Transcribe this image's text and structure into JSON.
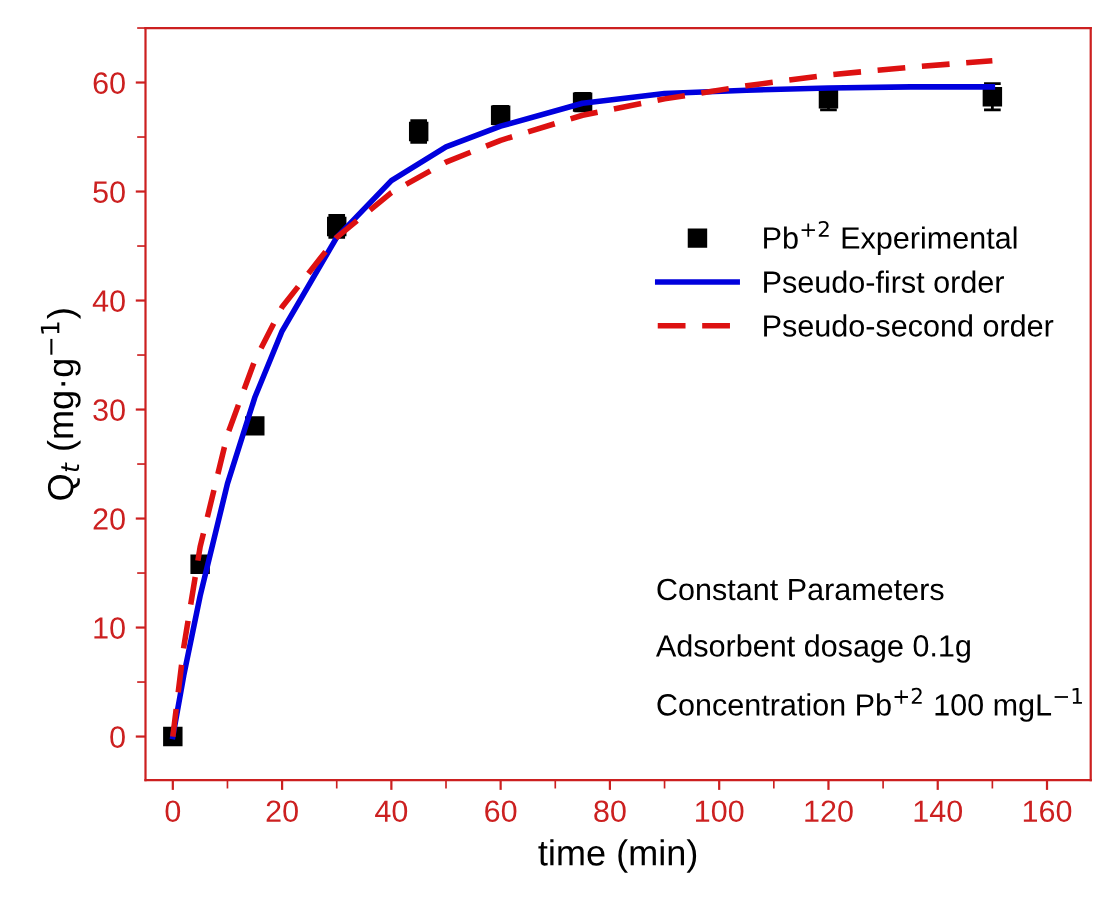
{
  "chart_data": {
    "type": "scatter",
    "xlabel": "time (min)",
    "ylabel": "Q$_{t}$ (mg·g$^{−1}$)",
    "xlim": [
      -5,
      168
    ],
    "xticks": [
      0,
      20,
      40,
      60,
      80,
      100,
      120,
      140,
      160
    ],
    "ylim": [
      -4,
      65
    ],
    "yticks": [
      0,
      10,
      20,
      30,
      40,
      50,
      60
    ],
    "grid": false,
    "legend": "top right",
    "series": [
      {
        "name": "Pb$^{+2}$ Experimental",
        "marker": "square",
        "color": "#000000",
        "x": [
          0,
          5,
          15,
          30,
          45,
          60,
          75,
          120,
          150
        ],
        "values": [
          0,
          15.8,
          28.5,
          46.8,
          55.5,
          57,
          58.2,
          58.5,
          58.7
        ],
        "errors": [
          0.5,
          0.5,
          0.5,
          1,
          1,
          0.8,
          0.8,
          1,
          1.2
        ]
      },
      {
        "name": "Pseudo-first order",
        "type": "line",
        "line_style": "solid",
        "color": "#0000dd",
        "x": [
          0,
          2,
          5,
          10,
          15,
          20,
          30,
          40,
          50,
          60,
          75,
          90,
          105,
          120,
          135,
          150
        ],
        "values": [
          0,
          5.6,
          12.9,
          23.2,
          31.1,
          37.2,
          45.8,
          51.0,
          54.1,
          56.0,
          58.1,
          59.0,
          59.3,
          59.5,
          59.6,
          59.6
        ]
      },
      {
        "name": "Pseudo-second order",
        "type": "line",
        "line_style": "dashed",
        "color": "#dd1111",
        "x": [
          0,
          2,
          5,
          10,
          15,
          20,
          30,
          40,
          50,
          60,
          75,
          90,
          105,
          120,
          135,
          150
        ],
        "values": [
          0,
          8.2,
          17.4,
          27.7,
          34.5,
          39.4,
          45.8,
          49.9,
          52.7,
          54.7,
          57.0,
          58.5,
          59.7,
          60.7,
          61.4,
          62.0
        ]
      }
    ],
    "annotations": [
      "Constant Parameters",
      "Adsorbent dosage 0.1g",
      "Concentration Pb$^{+2}$ 100 mgL$^{−1}$"
    ]
  }
}
